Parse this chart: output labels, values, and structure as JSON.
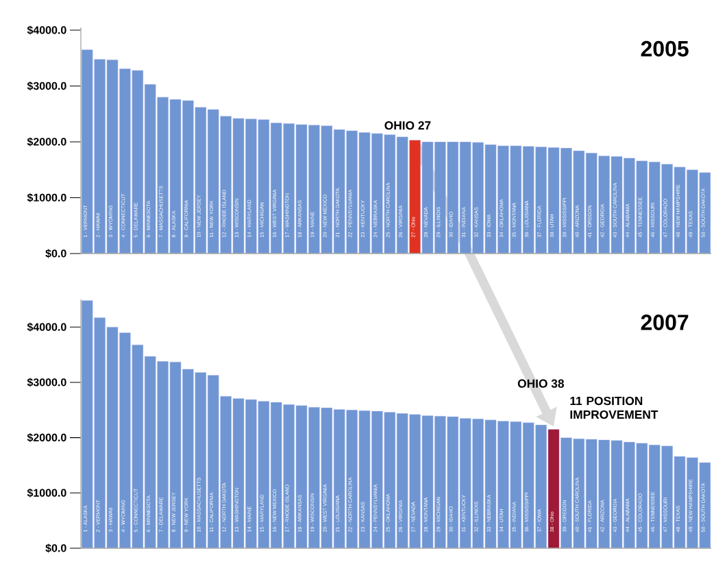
{
  "chart_data": [
    {
      "type": "bar",
      "title": "2005",
      "categories": [
        "1 - VERMONT",
        "2 - HAWAII",
        "3 - WYOMING",
        "4 - CONNECTICUT",
        "5 - DELAWARE",
        "6 - MINNESOTA",
        "7 - MASSACHUSETTS",
        "8 - ALASKA",
        "9 - CALIFORNIA",
        "10 - NEW JERSEY",
        "11 - NEW YORK",
        "12 - RHODE ISLAND",
        "13 - WISCONSIN",
        "14 - MARYLAND",
        "15 - MICHIGAN",
        "16 - WEST VIRGINIA",
        "17 - WASHINGTON",
        "18 - ARKANSAS",
        "19 - MAINE",
        "20 - NEW MEXICO",
        "21 - NORTH DAKOTA",
        "22 - PENNSYLVANIA",
        "23 - KENTUCKY",
        "24 - NEBRASKA",
        "25 - NORTH CAROLINA",
        "26 - VIRGINIA",
        "27 - Ohio",
        "28 - NEVADA",
        "29 - ILLINOIS",
        "30 - IDAHO",
        "31 - INDIANA",
        "32 - KANSAS",
        "33 - IOWA",
        "34 - OKLAHOMA",
        "35 - MONTANA",
        "36 - LOUISIANA",
        "37 - FLORIDA",
        "38 - UTAH",
        "39 - MISSISSIPPI",
        "40 - ARIZONA",
        "41 - OREGON",
        "42 - GEORGIA",
        "43 - SOUTH CAROLINA",
        "44 - ALABAMA",
        "45 - TENNESSEE",
        "46 - MISSOURI",
        "47 - COLORADO",
        "48 - NEW HAMPSHIRE",
        "49 - TEXAS",
        "50 - SOUTH DAKOTA"
      ],
      "values": [
        3650,
        3480,
        3470,
        3310,
        3280,
        3030,
        2800,
        2760,
        2740,
        2620,
        2580,
        2460,
        2420,
        2410,
        2400,
        2340,
        2330,
        2310,
        2300,
        2290,
        2220,
        2200,
        2170,
        2150,
        2130,
        2090,
        2030,
        2000,
        2000,
        2000,
        2000,
        1990,
        1950,
        1930,
        1930,
        1920,
        1910,
        1900,
        1890,
        1840,
        1800,
        1750,
        1740,
        1710,
        1660,
        1640,
        1600,
        1550,
        1500,
        1450
      ],
      "colors": [
        "#6f96d2",
        "#6f96d2",
        "#6f96d2",
        "#6f96d2",
        "#6f96d2",
        "#6f96d2",
        "#6f96d2",
        "#6f96d2",
        "#6f96d2",
        "#6f96d2",
        "#6f96d2",
        "#6f96d2",
        "#6f96d2",
        "#6f96d2",
        "#6f96d2",
        "#6f96d2",
        "#6f96d2",
        "#6f96d2",
        "#6f96d2",
        "#6f96d2",
        "#6f96d2",
        "#6f96d2",
        "#6f96d2",
        "#6f96d2",
        "#6f96d2",
        "#6f96d2",
        "#e03222",
        "#6f96d2",
        "#6f96d2",
        "#6f96d2",
        "#6f96d2",
        "#6f96d2",
        "#6f96d2",
        "#6f96d2",
        "#6f96d2",
        "#6f96d2",
        "#6f96d2",
        "#6f96d2",
        "#6f96d2",
        "#6f96d2",
        "#6f96d2",
        "#6f96d2",
        "#6f96d2",
        "#6f96d2",
        "#6f96d2",
        "#6f96d2",
        "#6f96d2",
        "#6f96d2",
        "#6f96d2",
        "#6f96d2"
      ],
      "ylim": [
        0,
        4050
      ],
      "yticks": [
        {
          "value": 0,
          "label": "$0.0"
        },
        {
          "value": 1000,
          "label": "$1000.0"
        },
        {
          "value": 2000,
          "label": "$2000.0"
        },
        {
          "value": 3000,
          "label": "$3000.0"
        },
        {
          "value": 4000,
          "label": "$4000.0"
        }
      ],
      "annotations": [
        {
          "text": "OHIO 27",
          "x": "27 - Ohio",
          "y": 2030
        }
      ]
    },
    {
      "type": "bar",
      "title": "2007",
      "categories": [
        "1 - ALASKA",
        "2 - VERMONT",
        "3 - HAWAII",
        "4 - WYOMING",
        "5 - CONNECTICUT",
        "6 - MINNESOTA",
        "7 - DELAWARE",
        "8 - NEW JERSEY",
        "9 - NEW YORK",
        "10 - MASSACHUSETTS",
        "11 - CALIFORNIA",
        "12 - NORTH DAKOTA",
        "13 - WASHINGTON",
        "14 - MAINE",
        "15 - MARYLAND",
        "16 - NEW MEXICO",
        "17 - RHODE ISLAND",
        "18 - ARKANSAS",
        "19 - WISCONSIN",
        "20 - WEST VIRGINIA",
        "21 - LOUISIANA",
        "22 - NORTH CAROLINA",
        "23 - KANSAS",
        "24 - PENNSYLVANIA",
        "25 - OKLAHOMA",
        "26 - VIRGINIA",
        "27 - NEVADA",
        "28 - MONTANA",
        "29 - MICHIGAN",
        "30 - IDAHO",
        "31 - KENTUCKY",
        "32 - ILLINOIS",
        "33 - NEBRASKA",
        "34 - UTAH",
        "35 - INDIANA",
        "36 - MISSISSIPPI",
        "37 - IOWA",
        "38 - Ohio",
        "39 - OREGON",
        "40 - SOUTH CAROLINA",
        "41 - FLORIDA",
        "42 - ARIZONA",
        "43 - GEORGIA",
        "44 - ALABAMA",
        "45 - COLORADO",
        "46 - TENNESSEE",
        "47 - MISSOURI",
        "48 - TEXAS",
        "49 - NEW HAMPSHIRE",
        "50 - SOUTH DAKOTA"
      ],
      "values": [
        4480,
        4170,
        4000,
        3900,
        3680,
        3470,
        3380,
        3370,
        3240,
        3180,
        3130,
        2750,
        2710,
        2690,
        2660,
        2640,
        2600,
        2580,
        2550,
        2540,
        2510,
        2500,
        2490,
        2480,
        2460,
        2440,
        2420,
        2400,
        2390,
        2380,
        2350,
        2340,
        2320,
        2300,
        2290,
        2270,
        2230,
        2150,
        2000,
        1980,
        1970,
        1960,
        1950,
        1920,
        1900,
        1870,
        1850,
        1660,
        1640,
        1550
      ],
      "colors": [
        "#6f96d2",
        "#6f96d2",
        "#6f96d2",
        "#6f96d2",
        "#6f96d2",
        "#6f96d2",
        "#6f96d2",
        "#6f96d2",
        "#6f96d2",
        "#6f96d2",
        "#6f96d2",
        "#6f96d2",
        "#6f96d2",
        "#6f96d2",
        "#6f96d2",
        "#6f96d2",
        "#6f96d2",
        "#6f96d2",
        "#6f96d2",
        "#6f96d2",
        "#6f96d2",
        "#6f96d2",
        "#6f96d2",
        "#6f96d2",
        "#6f96d2",
        "#6f96d2",
        "#6f96d2",
        "#6f96d2",
        "#6f96d2",
        "#6f96d2",
        "#6f96d2",
        "#6f96d2",
        "#6f96d2",
        "#6f96d2",
        "#6f96d2",
        "#6f96d2",
        "#6f96d2",
        "#9e1a36",
        "#6f96d2",
        "#6f96d2",
        "#6f96d2",
        "#6f96d2",
        "#6f96d2",
        "#6f96d2",
        "#6f96d2",
        "#6f96d2",
        "#6f96d2",
        "#6f96d2",
        "#6f96d2",
        "#6f96d2"
      ],
      "ylim": [
        0,
        4500
      ],
      "yticks": [
        {
          "value": 0,
          "label": "$0.0"
        },
        {
          "value": 1000,
          "label": "$1000.0"
        },
        {
          "value": 2000,
          "label": "$2000.0"
        },
        {
          "value": 3000,
          "label": "$3000.0"
        },
        {
          "value": 4000,
          "label": "$4000.0"
        }
      ],
      "annotations": [
        {
          "text": "11 POSITION IMPROVEMENT",
          "x": "38 - Ohio",
          "y": 2150
        },
        "OHIO 38"
      ]
    }
  ]
}
